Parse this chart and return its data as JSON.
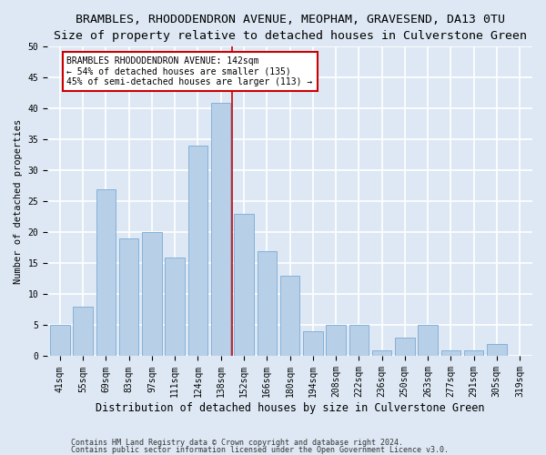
{
  "title": "BRAMBLES, RHODODENDRON AVENUE, MEOPHAM, GRAVESEND, DA13 0TU",
  "subtitle": "Size of property relative to detached houses in Culverstone Green",
  "xlabel": "Distribution of detached houses by size in Culverstone Green",
  "ylabel": "Number of detached properties",
  "footnote1": "Contains HM Land Registry data © Crown copyright and database right 2024.",
  "footnote2": "Contains public sector information licensed under the Open Government Licence v3.0.",
  "bar_labels": [
    "41sqm",
    "55sqm",
    "69sqm",
    "83sqm",
    "97sqm",
    "111sqm",
    "124sqm",
    "138sqm",
    "152sqm",
    "166sqm",
    "180sqm",
    "194sqm",
    "208sqm",
    "222sqm",
    "236sqm",
    "250sqm",
    "263sqm",
    "277sqm",
    "291sqm",
    "305sqm",
    "319sqm"
  ],
  "bar_values": [
    5,
    8,
    27,
    19,
    20,
    16,
    34,
    41,
    23,
    17,
    13,
    4,
    5,
    5,
    1,
    3,
    5,
    1,
    1,
    2,
    0
  ],
  "bar_color": "#b8cfe8",
  "bar_edge_color": "#7aaad4",
  "background_color": "#dde8f4",
  "grid_color": "#ffffff",
  "property_label": "BRAMBLES RHODODENDRON AVENUE: 142sqm",
  "annotation_line1": "← 54% of detached houses are smaller (135)",
  "annotation_line2": "45% of semi-detached houses are larger (113) →",
  "vline_color": "#cc0000",
  "annotation_box_edge_color": "#cc0000",
  "annotation_box_bg": "#ffffff",
  "ylim": [
    0,
    50
  ],
  "yticks": [
    0,
    5,
    10,
    15,
    20,
    25,
    30,
    35,
    40,
    45,
    50
  ],
  "vline_pos": 7.5,
  "title_fontsize": 9.5,
  "subtitle_fontsize": 8.5,
  "xlabel_fontsize": 8.5,
  "ylabel_fontsize": 7.5,
  "tick_fontsize": 7,
  "annot_fontsize": 7,
  "footnote_fontsize": 6
}
